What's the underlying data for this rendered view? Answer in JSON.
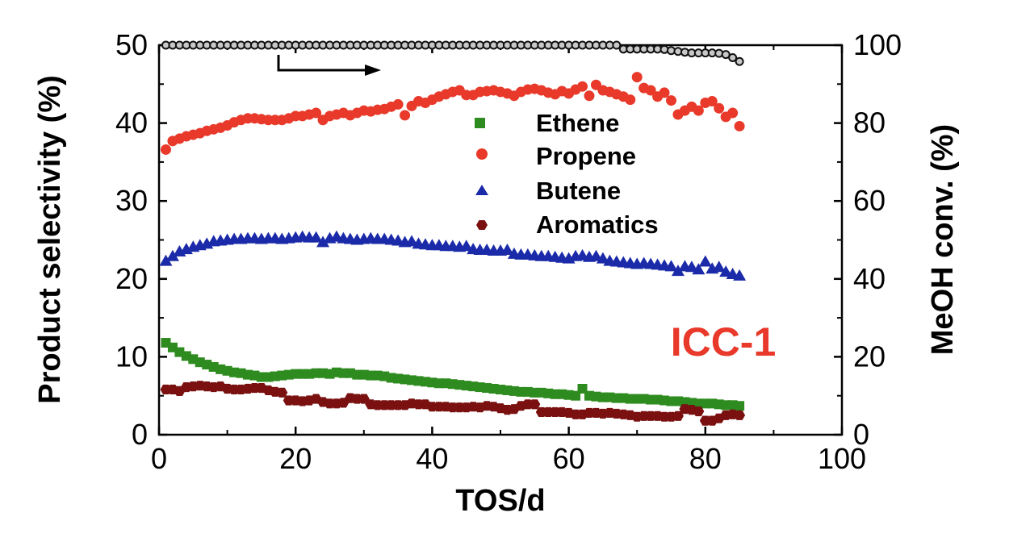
{
  "chart_data": {
    "type": "scatter",
    "xlabel": "TOS/d",
    "ylabel_left": "Product selectivity (%)",
    "ylabel_right": "MeOH conv. (%)",
    "xlim": [
      0,
      100
    ],
    "ylim_left": [
      0,
      50
    ],
    "ylim_right": [
      0,
      100
    ],
    "x_ticks": [
      "0",
      "20",
      "40",
      "60",
      "80",
      "100"
    ],
    "y_ticks_left": [
      "0",
      "10",
      "20",
      "30",
      "40",
      "50"
    ],
    "y_ticks_right": [
      "0",
      "20",
      "40",
      "60",
      "80",
      "100"
    ],
    "grid": false,
    "legend_position": "top-center",
    "annotation": "ICC-1",
    "annotation_color": "#e8392a",
    "series": [
      {
        "name": "Ethene",
        "axis": "left",
        "marker": "square",
        "color": "#2e8b1f",
        "x": [
          1,
          2,
          3,
          4,
          5,
          6,
          7,
          8,
          9,
          10,
          11,
          12,
          13,
          14,
          15,
          16,
          17,
          18,
          19,
          20,
          21,
          22,
          23,
          24,
          25,
          26,
          27,
          28,
          29,
          30,
          31,
          32,
          33,
          34,
          35,
          36,
          37,
          38,
          39,
          40,
          41,
          42,
          43,
          44,
          45,
          46,
          47,
          48,
          49,
          50,
          51,
          52,
          53,
          54,
          55,
          56,
          57,
          58,
          59,
          60,
          61,
          62,
          63,
          64,
          65,
          66,
          67,
          68,
          69,
          70,
          71,
          72,
          73,
          74,
          75,
          76,
          77,
          78,
          79,
          80,
          81,
          82,
          83,
          84,
          85
        ],
        "y": [
          11.8,
          11.2,
          10.6,
          10.1,
          9.7,
          9.3,
          9.0,
          8.7,
          8.4,
          8.2,
          8.0,
          7.9,
          7.7,
          7.6,
          7.4,
          7.4,
          7.5,
          7.6,
          7.7,
          7.8,
          7.8,
          7.8,
          7.9,
          7.9,
          7.8,
          8.0,
          7.9,
          7.9,
          7.7,
          7.7,
          7.6,
          7.6,
          7.5,
          7.3,
          7.2,
          7.1,
          7.0,
          6.9,
          6.8,
          6.7,
          6.6,
          6.6,
          6.5,
          6.4,
          6.3,
          6.2,
          6.1,
          6.0,
          5.9,
          5.8,
          5.7,
          5.6,
          5.5,
          5.5,
          5.4,
          5.4,
          5.3,
          5.2,
          5.2,
          5.1,
          5.0,
          5.9,
          5.0,
          4.9,
          4.8,
          4.8,
          4.7,
          4.7,
          4.6,
          4.6,
          4.6,
          4.5,
          4.5,
          4.4,
          4.3,
          4.3,
          4.2,
          4.1,
          4.0,
          4.0,
          4.0,
          3.9,
          3.8,
          3.8,
          3.7
        ]
      },
      {
        "name": "Propene",
        "axis": "left",
        "marker": "circle",
        "color": "#e8392a",
        "x": [
          1,
          2,
          3,
          4,
          5,
          6,
          7,
          8,
          9,
          10,
          11,
          12,
          13,
          14,
          15,
          16,
          17,
          18,
          19,
          20,
          21,
          22,
          23,
          24,
          25,
          26,
          27,
          28,
          29,
          30,
          31,
          32,
          33,
          34,
          35,
          36,
          37,
          38,
          39,
          40,
          41,
          42,
          43,
          44,
          45,
          46,
          47,
          48,
          49,
          50,
          51,
          52,
          53,
          54,
          55,
          56,
          57,
          58,
          59,
          60,
          61,
          62,
          63,
          64,
          65,
          66,
          67,
          68,
          69,
          70,
          71,
          72,
          73,
          74,
          75,
          76,
          77,
          78,
          79,
          80,
          81,
          82,
          83,
          84,
          85
        ],
        "y": [
          36.6,
          37.7,
          38.0,
          38.3,
          38.5,
          38.7,
          39.0,
          39.2,
          39.4,
          39.7,
          40.1,
          40.4,
          40.6,
          40.6,
          40.5,
          40.4,
          40.4,
          40.4,
          40.6,
          40.9,
          40.9,
          41.1,
          41.3,
          40.4,
          40.9,
          41.1,
          41.3,
          41.0,
          41.3,
          41.6,
          41.5,
          41.7,
          41.8,
          42.1,
          42.4,
          41.0,
          42.2,
          42.8,
          42.6,
          43.0,
          43.4,
          43.7,
          44.0,
          44.2,
          43.6,
          43.6,
          44.0,
          44.1,
          44.2,
          44.0,
          43.8,
          43.5,
          44.0,
          44.3,
          44.4,
          44.2,
          43.9,
          43.7,
          44.1,
          43.8,
          44.3,
          44.7,
          43.5,
          44.9,
          44.2,
          44.0,
          43.7,
          43.4,
          43.0,
          45.9,
          44.5,
          44.2,
          43.4,
          43.9,
          42.9,
          41.1,
          41.6,
          42.1,
          41.6,
          42.6,
          42.8,
          41.9,
          40.8,
          41.3,
          39.6
        ]
      },
      {
        "name": "Butene",
        "axis": "left",
        "marker": "triangle",
        "color": "#1a2aa8",
        "x": [
          1,
          2,
          3,
          4,
          5,
          6,
          7,
          8,
          9,
          10,
          11,
          12,
          13,
          14,
          15,
          16,
          17,
          18,
          19,
          20,
          21,
          22,
          23,
          24,
          25,
          26,
          27,
          28,
          29,
          30,
          31,
          32,
          33,
          34,
          35,
          36,
          37,
          38,
          39,
          40,
          41,
          42,
          43,
          44,
          45,
          46,
          47,
          48,
          49,
          50,
          51,
          52,
          53,
          54,
          55,
          56,
          57,
          58,
          59,
          60,
          61,
          62,
          63,
          64,
          65,
          66,
          67,
          68,
          69,
          70,
          71,
          72,
          73,
          74,
          75,
          76,
          77,
          78,
          79,
          80,
          81,
          82,
          83,
          84,
          85
        ],
        "y": [
          22.3,
          22.9,
          23.5,
          23.8,
          24.1,
          24.3,
          24.5,
          24.8,
          24.9,
          25.0,
          25.1,
          25.1,
          25.2,
          25.2,
          25.1,
          25.2,
          25.2,
          25.1,
          25.2,
          25.3,
          25.4,
          25.3,
          25.3,
          24.7,
          25.2,
          25.4,
          25.2,
          25.1,
          25.0,
          25.1,
          25.2,
          25.1,
          25.1,
          25.0,
          24.9,
          24.7,
          24.8,
          24.5,
          24.4,
          24.3,
          24.3,
          24.2,
          24.2,
          24.1,
          24.2,
          23.8,
          23.7,
          23.7,
          23.6,
          23.6,
          23.7,
          23.2,
          23.1,
          23.1,
          23.0,
          22.9,
          22.9,
          22.8,
          22.7,
          22.6,
          22.9,
          23.0,
          22.8,
          22.9,
          22.6,
          22.3,
          22.2,
          22.1,
          22.0,
          21.9,
          22.0,
          21.9,
          21.8,
          21.7,
          21.6,
          21.0,
          21.6,
          21.5,
          21.2,
          22.2,
          21.3,
          21.5,
          20.9,
          20.6,
          20.4
        ]
      },
      {
        "name": "Aromatics",
        "axis": "left",
        "marker": "hexagon",
        "color": "#7a1010",
        "x": [
          1,
          2,
          3,
          4,
          5,
          6,
          7,
          8,
          9,
          10,
          11,
          12,
          13,
          14,
          15,
          16,
          17,
          18,
          19,
          20,
          21,
          22,
          23,
          24,
          25,
          26,
          27,
          28,
          29,
          30,
          31,
          32,
          33,
          34,
          35,
          36,
          37,
          38,
          39,
          40,
          41,
          42,
          43,
          44,
          45,
          46,
          47,
          48,
          49,
          50,
          51,
          52,
          53,
          54,
          55,
          56,
          57,
          58,
          59,
          60,
          61,
          62,
          63,
          64,
          65,
          66,
          67,
          68,
          69,
          70,
          71,
          72,
          73,
          74,
          75,
          76,
          77,
          78,
          79,
          80,
          81,
          82,
          83,
          84,
          85
        ],
        "y": [
          5.8,
          5.8,
          5.6,
          6.1,
          6.2,
          6.3,
          6.2,
          6.1,
          6.2,
          5.9,
          5.8,
          5.8,
          5.9,
          6.0,
          6.0,
          5.7,
          5.5,
          5.4,
          4.4,
          4.4,
          4.3,
          4.4,
          4.6,
          4.2,
          4.0,
          4.0,
          4.1,
          4.7,
          4.6,
          4.6,
          3.9,
          3.8,
          3.8,
          3.8,
          3.8,
          3.8,
          4.0,
          3.9,
          3.9,
          3.6,
          3.6,
          3.6,
          3.5,
          3.5,
          3.5,
          3.6,
          3.5,
          3.7,
          3.6,
          3.4,
          3.2,
          3.3,
          3.7,
          3.9,
          3.9,
          2.9,
          2.9,
          2.9,
          2.9,
          2.8,
          2.6,
          2.6,
          2.8,
          2.8,
          2.7,
          2.8,
          2.7,
          2.6,
          2.5,
          2.3,
          2.4,
          2.4,
          2.4,
          2.3,
          2.3,
          2.4,
          3.3,
          3.2,
          3.0,
          1.8,
          1.8,
          2.1,
          2.5,
          2.6,
          2.5
        ]
      },
      {
        "name": "MeOH conv.",
        "axis": "right",
        "marker": "circle-open",
        "color": "#111111",
        "x": [
          1,
          2,
          3,
          4,
          5,
          6,
          7,
          8,
          9,
          10,
          11,
          12,
          13,
          14,
          15,
          16,
          17,
          18,
          19,
          20,
          21,
          22,
          23,
          24,
          25,
          26,
          27,
          28,
          29,
          30,
          31,
          32,
          33,
          34,
          35,
          36,
          37,
          38,
          39,
          40,
          41,
          42,
          43,
          44,
          45,
          46,
          47,
          48,
          49,
          50,
          51,
          52,
          53,
          54,
          55,
          56,
          57,
          58,
          59,
          60,
          61,
          62,
          63,
          64,
          65,
          66,
          67,
          68,
          69,
          70,
          71,
          72,
          73,
          74,
          75,
          76,
          77,
          78,
          79,
          80,
          81,
          82,
          83,
          84,
          85
        ],
        "y": [
          100,
          100,
          100,
          100,
          100,
          100,
          100,
          100,
          100,
          100,
          100,
          100,
          100,
          100,
          100,
          100,
          100,
          100,
          100,
          100,
          100,
          100,
          100,
          100,
          100,
          100,
          100,
          100,
          100,
          100,
          100,
          100,
          100,
          100,
          100,
          100,
          100,
          100,
          100,
          100,
          100,
          100,
          100,
          100,
          100,
          100,
          100,
          100,
          100,
          100,
          100,
          100,
          100,
          100,
          100,
          100,
          100,
          100,
          100,
          100,
          100,
          100,
          100,
          100,
          100,
          100,
          100,
          99,
          99,
          99,
          99,
          99,
          99,
          98.9,
          98.6,
          98.4,
          98.2,
          98,
          98,
          98,
          98,
          97.9,
          97.6,
          96.8,
          95.8
        ]
      }
    ]
  }
}
